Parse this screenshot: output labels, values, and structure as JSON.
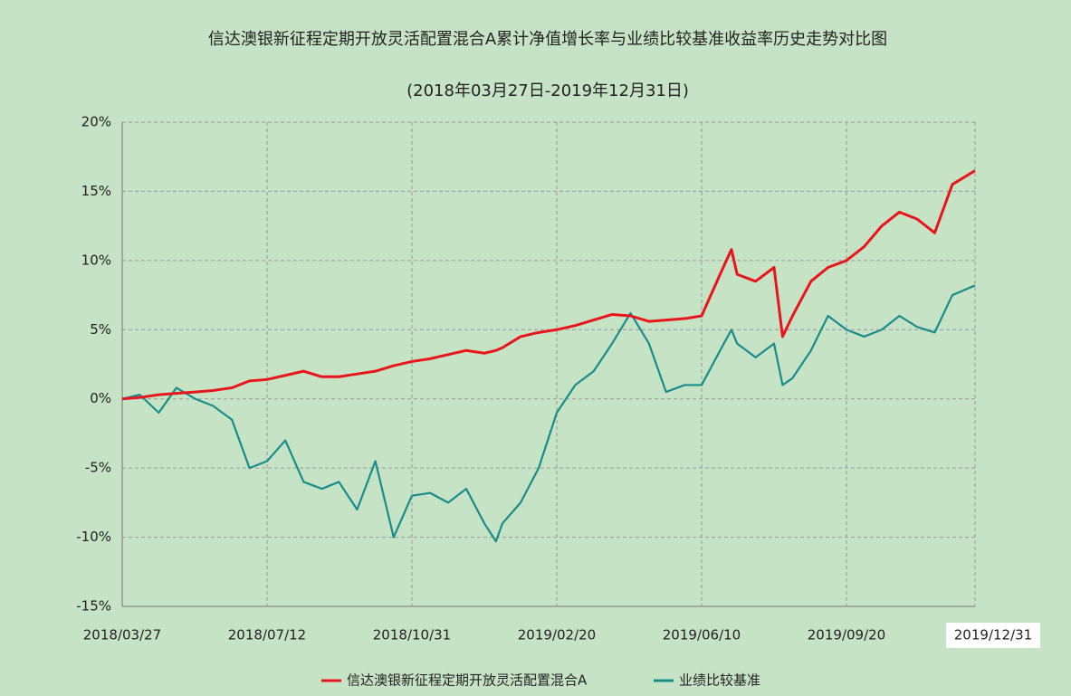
{
  "chart_data": {
    "type": "line",
    "title": "信达澳银新征程定期开放灵活配置混合A累计净值增长率与业绩比较基准收益率历史走势对比图",
    "subtitle": "(2018年03月27日-2019年12月31日)",
    "x": [
      "2018/03/27",
      "2018/04/09",
      "2018/04/23",
      "2018/05/06",
      "2018/05/20",
      "2018/06/02",
      "2018/06/16",
      "2018/06/29",
      "2018/07/12",
      "2018/07/26",
      "2018/08/09",
      "2018/08/23",
      "2018/09/05",
      "2018/09/19",
      "2018/10/03",
      "2018/10/17",
      "2018/10/31",
      "2018/11/14",
      "2018/11/28",
      "2018/12/12",
      "2018/12/26",
      "2019/01/04",
      "2019/01/09",
      "2019/01/23",
      "2019/02/06",
      "2019/02/20",
      "2019/03/06",
      "2019/03/20",
      "2019/04/03",
      "2019/04/17",
      "2019/05/01",
      "2019/05/14",
      "2019/05/28",
      "2019/06/10",
      "2019/06/23",
      "2019/07/01",
      "2019/07/05",
      "2019/07/18",
      "2019/07/31",
      "2019/08/06",
      "2019/08/13",
      "2019/08/26",
      "2019/09/07",
      "2019/09/20",
      "2019/10/04",
      "2019/10/18",
      "2019/11/01",
      "2019/11/15",
      "2019/11/29",
      "2019/12/13",
      "2019/12/31"
    ],
    "series": [
      {
        "name": "信达澳银新征程定期开放灵活配置混合A",
        "color": "#e8151b",
        "values": [
          0,
          0.1,
          0.3,
          0.4,
          0.5,
          0.6,
          0.8,
          1.3,
          1.4,
          1.7,
          2,
          1.6,
          1.6,
          1.8,
          2,
          2.4,
          2.7,
          2.9,
          3.2,
          3.5,
          3.3,
          3.5,
          3.7,
          4.5,
          4.8,
          5,
          5.3,
          5.7,
          6.1,
          6,
          5.6,
          5.7,
          5.8,
          6,
          9,
          10.8,
          9,
          8.5,
          9.5,
          4.5,
          6,
          8.5,
          9.5,
          10,
          11,
          12.5,
          13.5,
          13,
          12,
          15.5,
          16.5
        ]
      },
      {
        "name": "业绩比较基准",
        "color": "#1a8c8c",
        "values": [
          0,
          0.3,
          -1,
          0.8,
          0,
          -0.5,
          -1.5,
          -5,
          -4.5,
          -3,
          -6,
          -6.5,
          -6,
          -8,
          -4.5,
          -10,
          -7,
          -6.8,
          -7.5,
          -6.5,
          -9,
          -10.3,
          -9,
          -7.5,
          -5,
          -1,
          1,
          2,
          4,
          6.2,
          4,
          0.5,
          1,
          1,
          3.5,
          5,
          4,
          3,
          4,
          1,
          1.5,
          3.5,
          6,
          5,
          4.5,
          5,
          6,
          5.2,
          4.8,
          7.5,
          8.2
        ]
      }
    ],
    "xlim": [
      "2018/03/27",
      "2019/12/31"
    ],
    "xticks": [
      "2018/03/27",
      "2018/07/12",
      "2018/10/31",
      "2019/02/20",
      "2019/06/10",
      "2019/09/20",
      "2019/12/31"
    ],
    "ylim": [
      -15,
      20
    ],
    "yticks": [
      {
        "value": -15,
        "label": "-15%"
      },
      {
        "value": -10,
        "label": "-10%"
      },
      {
        "value": -5,
        "label": "-5%"
      },
      {
        "value": 0,
        "label": "0%"
      },
      {
        "value": 5,
        "label": "5%"
      },
      {
        "value": 10,
        "label": "10%"
      },
      {
        "value": 15,
        "label": "15%"
      },
      {
        "value": 20,
        "label": "20%"
      }
    ],
    "grid": true,
    "legend": "bottom"
  }
}
